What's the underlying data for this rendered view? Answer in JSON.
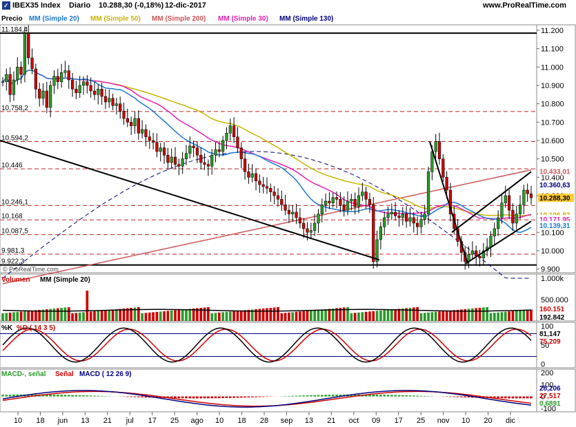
{
  "header": {
    "index": "IBEX35 Index",
    "period": "Diario",
    "last": "10.288,30 (-0,18%)",
    "date": "12-dic-2017",
    "site": "www.ProRealTime.com",
    "watermark": "© ProRealTime.com"
  },
  "legend_price": [
    {
      "label": "Precio",
      "color": "#000000"
    },
    {
      "label": "MM (Simple 20)",
      "color": "#1f78d1"
    },
    {
      "label": "MM (Simple 50)",
      "color": "#c8b400"
    },
    {
      "label": "MM (Simple 200)",
      "color": "#cc5555"
    },
    {
      "label": "MM (Simple 30)",
      "color": "#e020b0"
    },
    {
      "label": "MM (Simple 130)",
      "color": "#000080"
    }
  ],
  "legend_volume": [
    {
      "label": "Volumen",
      "color": "#cc0000"
    },
    {
      "label": "MM (Simple 20)",
      "color": "#000000"
    }
  ],
  "legend_stoch": [
    {
      "label": "%K",
      "color": "#000000"
    },
    {
      "label": "%D ( 14 3 5)",
      "color": "#cc0000"
    }
  ],
  "legend_macd": [
    {
      "label": "MACD-, señal",
      "color": "#2a9a2a"
    },
    {
      "label": "Señal",
      "color": "#cc0000"
    },
    {
      "label": "MACD ( 12 26 9)",
      "color": "#000080"
    }
  ],
  "level_labels": [
    "11.184,4",
    "10.758,2",
    "10.594,2",
    "10.446",
    "10.246,1",
    "10.168",
    "10.087,5",
    "9.981,3",
    "9.922,3"
  ],
  "chart_data": [
    {
      "type": "candlestick",
      "title": "IBEX35 Index Diario",
      "y_ticks": [
        "11.200",
        "11.100",
        "11.000",
        "10.900",
        "10.800",
        "10.700",
        "10.600",
        "10.500",
        "10.400",
        "10.300",
        "10.200",
        "10.100",
        "10.000",
        "9.900"
      ],
      "ylim": [
        9880,
        11230
      ],
      "x_ticks": [
        "10",
        "18",
        "jun",
        "13",
        "21",
        "jul",
        "17",
        "25",
        "ago",
        "10",
        "18",
        "28",
        "sep",
        "13",
        "21",
        "oct",
        "09",
        "17",
        "25",
        "nov",
        "10",
        "20",
        "dic"
      ],
      "horizontal_levels": [
        11184.4,
        10758.2,
        10594.2,
        10446,
        10246.1,
        10168,
        10087.5,
        9981.3,
        9922.3
      ],
      "series": [
        {
          "name": "Precio",
          "values_close": [
            10920,
            10960,
            10850,
            10930,
            11000,
            10960,
            11184,
            11050,
            10990,
            10880,
            10830,
            10870,
            10780,
            10900,
            10950,
            10920,
            10970,
            10980,
            10930,
            10880,
            10860,
            10900,
            10920,
            10900,
            10870,
            10850,
            10880,
            10840,
            10810,
            10830,
            10790,
            10800,
            10760,
            10720,
            10700,
            10680,
            10720,
            10640,
            10660,
            10620,
            10600,
            10590,
            10540,
            10560,
            10520,
            10480,
            10510,
            10470,
            10460,
            10500,
            10530,
            10570,
            10560,
            10520,
            10480,
            10470,
            10460,
            10520,
            10550,
            10540,
            10600,
            10640,
            10680,
            10620,
            10560,
            10500,
            10430,
            10400,
            10420,
            10380,
            10360,
            10350,
            10340,
            10320,
            10300,
            10280,
            10250,
            10220,
            10200,
            10210,
            10180,
            10150,
            10120,
            10100,
            10110,
            10150,
            10200,
            10250,
            10270,
            10260,
            10290,
            10280,
            10250,
            10220,
            10270,
            10280,
            10240,
            10300,
            10320,
            10280,
            10250,
            9940,
            10060,
            10130,
            10180,
            10200,
            10210,
            10190,
            10180,
            10200,
            10160,
            10180,
            10150,
            10130,
            10170,
            10200,
            10430,
            10540,
            10594,
            10500,
            10400,
            10330,
            10200,
            10120,
            10050,
            9990,
            9940,
            9980,
            10000,
            9970,
            9960,
            10000,
            10020,
            10080,
            10120,
            10180,
            10260,
            10300,
            10220,
            10150,
            10200,
            10250,
            10330,
            10310,
            10288
          ]
        },
        {
          "name": "MM (Simple 20)"
        },
        {
          "name": "MM (Simple 50)"
        },
        {
          "name": "MM (Simple 200)"
        },
        {
          "name": "MM (Simple 30)"
        },
        {
          "name": "MM (Simple 130)"
        }
      ],
      "value_labels": [
        {
          "text": "10.433,01",
          "color": "#cc5555"
        },
        {
          "text": "10.360,63",
          "color": "#000080"
        },
        {
          "text": "10.288,30",
          "color": "#000000"
        },
        {
          "text": "10.196,82",
          "color": "#c8b400"
        },
        {
          "text": "10.171,95",
          "color": "#e020b0"
        },
        {
          "text": "10.139,31",
          "color": "#1f78d1"
        }
      ]
    },
    {
      "type": "bar",
      "title": "Volumen",
      "y_ticks": [
        "1.000k",
        "500.000"
      ],
      "ylim": [
        0,
        1100000
      ],
      "value_labels": [
        {
          "text": "160.151",
          "color": "#cc0000"
        },
        {
          "text": "192.842",
          "color": "#000000"
        }
      ]
    },
    {
      "type": "line",
      "title": "%K %D ( 14 3 5)",
      "y_ticks": [
        "100",
        "50",
        "0"
      ],
      "ylim": [
        -10,
        110
      ],
      "value_labels": [
        {
          "text": "81,147",
          "color": "#000000"
        },
        {
          "text": "75,209",
          "color": "#cc0000"
        }
      ]
    },
    {
      "type": "line",
      "title": "MACD ( 12 26 9)",
      "y_ticks": [
        "200",
        "100",
        "0",
        "-100"
      ],
      "ylim": [
        -130,
        230
      ],
      "value_labels": [
        {
          "text": "28,206",
          "color": "#000080"
        },
        {
          "text": "27,517",
          "color": "#cc0000"
        },
        {
          "text": "0,6891",
          "color": "#2a9a2a"
        }
      ]
    }
  ]
}
